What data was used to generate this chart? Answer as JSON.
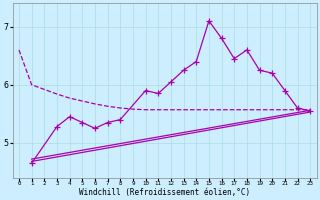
{
  "xlabel": "Windchill (Refroidissement éolien,°C)",
  "color": "#aa00aa",
  "bg_color": "#cceeff",
  "grid_color": "#aadddd",
  "ylim": [
    4.4,
    7.4
  ],
  "yticks": [
    5,
    6,
    7
  ],
  "xlim": [
    -0.5,
    23.5
  ],
  "line_dashed_x": [
    0,
    1,
    2,
    3,
    4,
    5,
    6,
    7,
    8,
    9,
    10,
    11,
    12,
    13,
    14,
    15,
    16,
    17,
    18,
    19,
    20,
    21,
    22,
    23
  ],
  "line_dashed_y": [
    6.6,
    6.0,
    5.92,
    5.84,
    5.77,
    5.72,
    5.67,
    5.63,
    5.6,
    5.58,
    5.57,
    5.57,
    5.57,
    5.57,
    5.57,
    5.57,
    5.57,
    5.57,
    5.57,
    5.57,
    5.57,
    5.57,
    5.57,
    5.57
  ],
  "line_main_x": [
    1,
    3,
    4,
    5,
    6,
    7,
    8,
    10,
    11,
    12,
    13,
    14,
    15,
    16,
    17,
    18,
    19,
    20,
    21,
    22,
    23
  ],
  "line_main_y": [
    4.65,
    5.28,
    5.45,
    5.35,
    5.25,
    5.35,
    5.4,
    5.9,
    5.85,
    6.05,
    6.25,
    6.4,
    7.1,
    6.8,
    6.45,
    6.6,
    6.25,
    6.2,
    5.9,
    5.6,
    5.55
  ],
  "trend1_x": [
    1,
    23
  ],
  "trend1_y": [
    4.68,
    5.53
  ],
  "trend2_x": [
    1,
    23
  ],
  "trend2_y": [
    4.72,
    5.56
  ]
}
